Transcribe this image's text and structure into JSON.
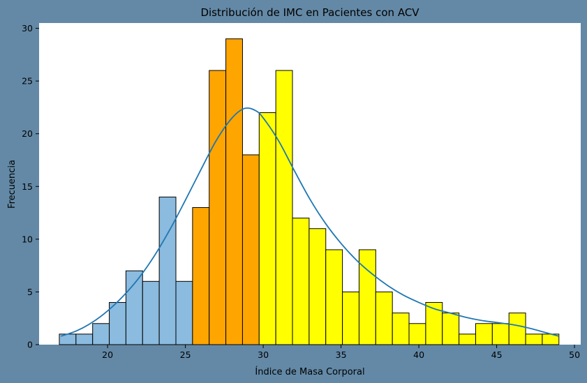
{
  "chart_data": {
    "type": "bar",
    "title": "Distribución de IMC en Pacientes con ACV",
    "xlabel": "Índice de Masa Corporal",
    "ylabel": "Frecuencia",
    "xlim": [
      15.6,
      50.4
    ],
    "ylim": [
      0,
      30.5
    ],
    "xticks": [
      20,
      25,
      30,
      35,
      40,
      45,
      50
    ],
    "yticks": [
      0,
      5,
      10,
      15,
      20,
      25,
      30
    ],
    "grid": false,
    "bin_edges": [
      16.9,
      17.97,
      19.04,
      20.11,
      21.18,
      22.25,
      23.32,
      24.39,
      25.46,
      26.53,
      27.6,
      28.67,
      29.74,
      30.81,
      31.88,
      32.95,
      34.02,
      35.09,
      36.16,
      37.23,
      38.3,
      39.37,
      40.44,
      41.51,
      42.58,
      43.65,
      44.72,
      45.79,
      46.86,
      47.93,
      49.0
    ],
    "values": [
      1,
      1,
      2,
      4,
      7,
      6,
      14,
      6,
      13,
      26,
      29,
      18,
      22,
      26,
      12,
      11,
      9,
      5,
      9,
      5,
      3,
      2,
      4,
      3,
      1,
      2,
      2,
      3,
      1,
      1
    ],
    "bar_colors": [
      "#8bbbde",
      "#8bbbde",
      "#8bbbde",
      "#8bbbde",
      "#8bbbde",
      "#8bbbde",
      "#8bbbde",
      "#8bbbde",
      "#ffa500",
      "#ffa500",
      "#ffa500",
      "#ffa500",
      "#ffff00",
      "#ffff00",
      "#ffff00",
      "#ffff00",
      "#ffff00",
      "#ffff00",
      "#ffff00",
      "#ffff00",
      "#ffff00",
      "#ffff00",
      "#ffff00",
      "#ffff00",
      "#ffff00",
      "#ffff00",
      "#ffff00",
      "#ffff00",
      "#ffff00",
      "#ffff00"
    ],
    "kde": {
      "color": "#1f77b4",
      "x": [
        17.0,
        18.0,
        19.0,
        20.0,
        21.0,
        22.0,
        23.0,
        24.0,
        25.0,
        26.0,
        27.0,
        28.0,
        28.8,
        29.5,
        30.0,
        31.0,
        32.0,
        33.0,
        34.0,
        35.0,
        36.0,
        37.0,
        38.0,
        39.0,
        40.0,
        41.0,
        42.0,
        43.0,
        44.0,
        45.0,
        46.0,
        47.0,
        48.0,
        49.0
      ],
      "y": [
        0.8,
        1.3,
        2.1,
        3.2,
        4.6,
        6.3,
        8.4,
        10.9,
        13.7,
        16.6,
        19.4,
        21.5,
        22.4,
        22.2,
        21.5,
        19.3,
        16.5,
        13.8,
        11.5,
        9.6,
        8.0,
        6.7,
        5.6,
        4.7,
        4.0,
        3.4,
        3.0,
        2.6,
        2.3,
        2.1,
        1.9,
        1.6,
        1.2,
        0.8
      ]
    }
  }
}
